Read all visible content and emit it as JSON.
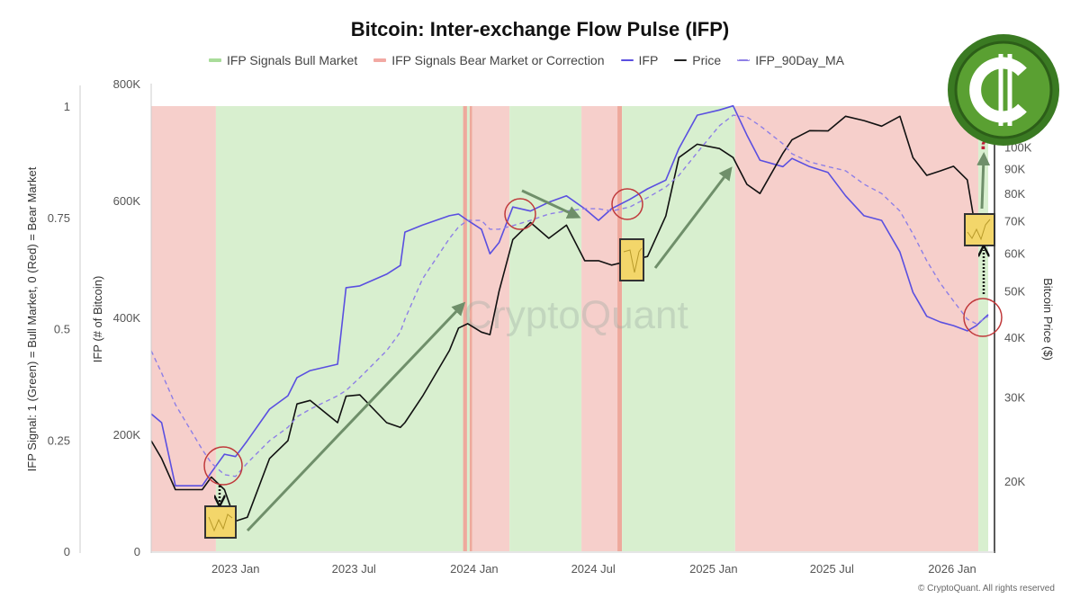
{
  "title": "Bitcoin: Inter-exchange Flow Pulse (IFP)",
  "legend": [
    {
      "label": "IFP Signals Bull Market",
      "color": "#a9dc9a"
    },
    {
      "label": "IFP Signals Bear Market or Correction",
      "color": "#f2a9a3"
    },
    {
      "label": "IFP",
      "color": "#5a4fe0"
    },
    {
      "label": "Price",
      "color": "#222222"
    },
    {
      "label": "IFP_90Day_MA",
      "color": "#8e7fe6"
    }
  ],
  "watermark": "CryptoQuant",
  "copyright": "© CryptoQuant. All rights reserved",
  "chart_data": {
    "type": "line",
    "title": "Bitcoin: Inter-exchange Flow Pulse (IFP)",
    "xlim": [
      "2022-08-25",
      "2026-02-25"
    ],
    "x_ticks": [
      "2023 Jan",
      "2023 Jul",
      "2024 Jan",
      "2024 Jul",
      "2025 Jan",
      "2025 Jul",
      "2026 Jan"
    ],
    "axes": {
      "signal": {
        "label": "IFP Signal: 1 (Green) = Bull Market, 0 (Red) = Bear Market",
        "ylim": [
          0,
          1
        ],
        "ticks": [
          "0",
          "0.25",
          "0.5",
          "0.75",
          "1"
        ]
      },
      "ifp": {
        "label": "IFP (# of Bitcoin)",
        "ylim": [
          0,
          800000
        ],
        "ticks": [
          "0",
          "200K",
          "400K",
          "600K",
          "800K"
        ]
      },
      "price": {
        "label": "Bitcoin Price ($)",
        "scale": "log",
        "ylim": [
          14270,
          135600
        ],
        "ticks": [
          "20K",
          "30K",
          "40K",
          "50K",
          "60K",
          "70K",
          "80K",
          "90K",
          "100K"
        ]
      }
    },
    "signal_bands": [
      {
        "start": "2022-08-25",
        "end": "2022-12-02",
        "signal": 0,
        "color": "#f6cfcb"
      },
      {
        "start": "2022-12-02",
        "end": "2023-12-15",
        "signal": 1,
        "color": "#d8efcf"
      },
      {
        "start": "2023-12-15",
        "end": "2023-12-21",
        "signal": 0,
        "color": "#eea99c"
      },
      {
        "start": "2023-12-21",
        "end": "2023-12-25",
        "signal": 1,
        "color": "#d8efcf"
      },
      {
        "start": "2023-12-25",
        "end": "2023-12-29",
        "signal": 0,
        "color": "#eea99c"
      },
      {
        "start": "2023-12-29",
        "end": "2024-02-24",
        "signal": 0,
        "color": "#f6cfcb"
      },
      {
        "start": "2024-02-24",
        "end": "2024-06-13",
        "signal": 1,
        "color": "#d8efcf"
      },
      {
        "start": "2024-06-13",
        "end": "2024-08-07",
        "signal": 0,
        "color": "#f6cfcb"
      },
      {
        "start": "2024-08-07",
        "end": "2024-08-14",
        "signal": 0,
        "color": "#eea99c"
      },
      {
        "start": "2024-08-14",
        "end": "2025-02-03",
        "signal": 1,
        "color": "#d8efcf"
      },
      {
        "start": "2025-02-03",
        "end": "2026-02-10",
        "signal": 0,
        "color": "#f6cfcb"
      },
      {
        "start": "2026-02-10",
        "end": "2026-02-25",
        "signal": 1,
        "color": "#d8efcf"
      }
    ],
    "x": [
      "2022-08-25",
      "2022-09-10",
      "2022-10-01",
      "2022-11-11",
      "2022-11-25",
      "2022-12-15",
      "2023-01-01",
      "2023-01-19",
      "2023-02-22",
      "2023-03-22",
      "2023-04-05",
      "2023-04-25",
      "2023-06-06",
      "2023-06-19",
      "2023-07-10",
      "2023-08-20",
      "2023-09-10",
      "2023-09-17",
      "2023-10-14",
      "2023-11-24",
      "2023-12-08",
      "2023-12-22",
      "2024-01-12",
      "2024-01-25",
      "2024-02-08",
      "2024-02-29",
      "2024-03-27",
      "2024-04-24",
      "2024-05-21",
      "2024-06-18",
      "2024-07-09",
      "2024-07-29",
      "2024-08-26",
      "2024-09-22",
      "2024-10-20",
      "2024-11-09",
      "2024-12-07",
      "2025-01-10",
      "2025-01-31",
      "2025-02-21",
      "2025-03-13",
      "2025-04-17",
      "2025-05-01",
      "2025-05-28",
      "2025-06-25",
      "2025-07-22",
      "2025-08-19",
      "2025-09-15",
      "2025-10-13",
      "2025-11-02",
      "2025-11-23",
      "2025-12-14",
      "2026-01-03",
      "2026-01-24",
      "2026-02-07",
      "2026-02-25"
    ],
    "series": [
      {
        "name": "IFP",
        "axis": "ifp",
        "color": "#5a4fe0",
        "values": [
          235000,
          220000,
          112000,
          112000,
          135000,
          166000,
          162000,
          189000,
          243000,
          266000,
          297000,
          309000,
          320000,
          451000,
          454000,
          474000,
          489000,
          546000,
          558000,
          574000,
          577000,
          566000,
          551000,
          509000,
          528000,
          589000,
          582000,
          597000,
          608000,
          586000,
          566000,
          586000,
          602000,
          620000,
          635000,
          689000,
          746000,
          755000,
          762000,
          712000,
          669000,
          658000,
          672000,
          658000,
          648000,
          608000,
          574000,
          566000,
          512000,
          443000,
          402000,
          392000,
          386000,
          377000,
          386000,
          405000
        ]
      },
      {
        "name": "Price",
        "axis": "price",
        "color": "#111111",
        "values": [
          24300,
          22300,
          19200,
          19200,
          20400,
          19200,
          16500,
          16800,
          22300,
          24300,
          29000,
          29500,
          26500,
          30100,
          30300,
          26500,
          25900,
          26500,
          30100,
          37500,
          41800,
          42700,
          41000,
          40500,
          49900,
          64000,
          69500,
          64400,
          68600,
          57800,
          57800,
          56600,
          57800,
          59000,
          71700,
          95000,
          101300,
          99200,
          95000,
          83500,
          79900,
          97000,
          103500,
          108100,
          108000,
          115900,
          113500,
          110500,
          115900,
          95000,
          87200,
          89100,
          91100,
          85300,
          65700,
          70500
        ]
      },
      {
        "name": "IFP_90Day_MA",
        "axis": "ifp",
        "color": "#8e7fe6",
        "dashed": true,
        "values": [
          343000,
          305000,
          251000,
          174000,
          151000,
          131000,
          128000,
          151000,
          189000,
          212000,
          230000,
          243000,
          266000,
          275000,
          297000,
          343000,
          375000,
          397000,
          466000,
          535000,
          555000,
          566000,
          566000,
          551000,
          551000,
          557000,
          566000,
          577000,
          582000,
          586000,
          586000,
          582000,
          589000,
          605000,
          623000,
          643000,
          682000,
          728000,
          746000,
          743000,
          728000,
          697000,
          680000,
          666000,
          658000,
          651000,
          628000,
          612000,
          582000,
          543000,
          497000,
          458000,
          428000,
          397000,
          389000,
          402000
        ]
      }
    ]
  }
}
